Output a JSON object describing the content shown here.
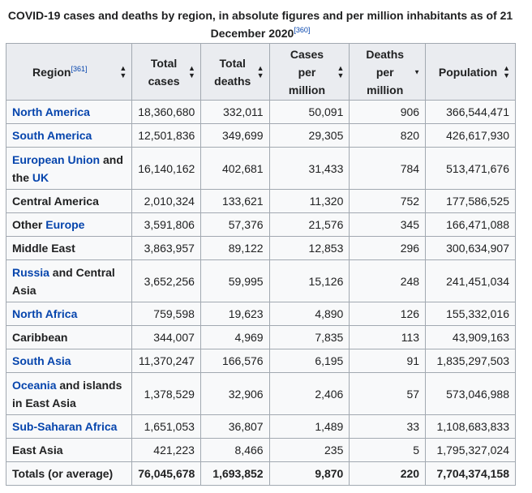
{
  "caption": {
    "text": "COVID-19 cases and deaths by region, in absolute figures and per million inhabitants as of 21 December 2020",
    "ref": "[360]"
  },
  "headers": {
    "region": "Region",
    "region_ref": "[361]",
    "total_cases": [
      "Total",
      "cases"
    ],
    "total_deaths": [
      "Total",
      "deaths"
    ],
    "cases_per_million": [
      "Cases",
      "per",
      "million"
    ],
    "deaths_per_million": [
      "Deaths",
      "per",
      "million"
    ],
    "population": "Population"
  },
  "sort_icons": {
    "unsorted": "sort-updown-icon",
    "sorted_desc": "sort-down-icon",
    "sorted_column": "deaths_per_million"
  },
  "colors": {
    "link": "#0645ad",
    "text": "#202122",
    "header_bg": "#eaecf0",
    "cell_bg": "#f8f9fa",
    "border": "#a2a9b1"
  },
  "rows": [
    {
      "parts": [
        {
          "t": "North America",
          "link": true
        }
      ],
      "total_cases": "18,360,680",
      "total_deaths": "332,011",
      "cases_per_million": "50,091",
      "deaths_per_million": "906",
      "population": "366,544,471"
    },
    {
      "parts": [
        {
          "t": "South America",
          "link": true
        }
      ],
      "total_cases": "12,501,836",
      "total_deaths": "349,699",
      "cases_per_million": "29,305",
      "deaths_per_million": "820",
      "population": "426,617,930"
    },
    {
      "parts": [
        {
          "t": "European Union",
          "link": true
        },
        {
          "t": " and the ",
          "link": false
        },
        {
          "t": "UK",
          "link": true
        }
      ],
      "tall": true,
      "total_cases": "16,140,162",
      "total_deaths": "402,681",
      "cases_per_million": "31,433",
      "deaths_per_million": "784",
      "population": "513,471,676"
    },
    {
      "parts": [
        {
          "t": "Central America",
          "link": false
        }
      ],
      "total_cases": "2,010,324",
      "total_deaths": "133,621",
      "cases_per_million": "11,320",
      "deaths_per_million": "752",
      "population": "177,586,525"
    },
    {
      "parts": [
        {
          "t": "Other ",
          "link": false
        },
        {
          "t": "Europe",
          "link": true
        }
      ],
      "total_cases": "3,591,806",
      "total_deaths": "57,376",
      "cases_per_million": "21,576",
      "deaths_per_million": "345",
      "population": "166,471,088"
    },
    {
      "parts": [
        {
          "t": "Middle East",
          "link": false
        }
      ],
      "total_cases": "3,863,957",
      "total_deaths": "89,122",
      "cases_per_million": "12,853",
      "deaths_per_million": "296",
      "population": "300,634,907"
    },
    {
      "parts": [
        {
          "t": "Russia",
          "link": true
        },
        {
          "t": " and Central Asia",
          "link": false
        }
      ],
      "tall": true,
      "total_cases": "3,652,256",
      "total_deaths": "59,995",
      "cases_per_million": "15,126",
      "deaths_per_million": "248",
      "population": "241,451,034"
    },
    {
      "parts": [
        {
          "t": "North Africa",
          "link": true
        }
      ],
      "total_cases": "759,598",
      "total_deaths": "19,623",
      "cases_per_million": "4,890",
      "deaths_per_million": "126",
      "population": "155,332,016"
    },
    {
      "parts": [
        {
          "t": "Caribbean",
          "link": false
        }
      ],
      "total_cases": "344,007",
      "total_deaths": "4,969",
      "cases_per_million": "7,835",
      "deaths_per_million": "113",
      "population": "43,909,163"
    },
    {
      "parts": [
        {
          "t": "South Asia",
          "link": true
        }
      ],
      "total_cases": "11,370,247",
      "total_deaths": "166,576",
      "cases_per_million": "6,195",
      "deaths_per_million": "91",
      "population": "1,835,297,503"
    },
    {
      "parts": [
        {
          "t": "Oceania",
          "link": true
        },
        {
          "t": " and islands in East Asia",
          "link": false
        }
      ],
      "tall": true,
      "total_cases": "1,378,529",
      "total_deaths": "32,906",
      "cases_per_million": "2,406",
      "deaths_per_million": "57",
      "population": "573,046,988"
    },
    {
      "parts": [
        {
          "t": "Sub-Saharan Africa",
          "link": true
        }
      ],
      "total_cases": "1,651,053",
      "total_deaths": "36,807",
      "cases_per_million": "1,489",
      "deaths_per_million": "33",
      "population": "1,108,683,833"
    },
    {
      "parts": [
        {
          "t": "East Asia",
          "link": false
        }
      ],
      "total_cases": "421,223",
      "total_deaths": "8,466",
      "cases_per_million": "235",
      "deaths_per_million": "5",
      "population": "1,795,327,024"
    }
  ],
  "totals": {
    "label": "Totals (or average)",
    "total_cases": "76,045,678",
    "total_deaths": "1,693,852",
    "cases_per_million": "9,870",
    "deaths_per_million": "220",
    "population": "7,704,374,158"
  }
}
